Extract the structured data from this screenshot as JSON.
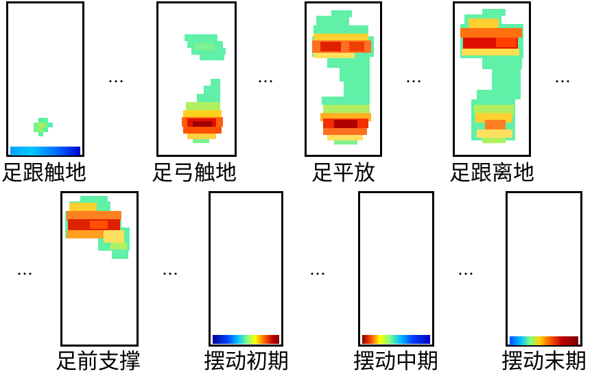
{
  "captions": {
    "heel_strike": "足跟触地",
    "arch_contact": "足弓触地",
    "foot_flat": "足平放",
    "heel_off": "足跟离地",
    "forefoot_support": "足前支撑",
    "swing_early": "摆动初期",
    "swing_mid": "摆动中期",
    "swing_late": "摆动末期"
  },
  "ellipsis": "…",
  "colors": {
    "frame": "#000000",
    "jet_low": "#00008f",
    "jet_mid": "#7fff7f",
    "jet_high": "#800000"
  }
}
